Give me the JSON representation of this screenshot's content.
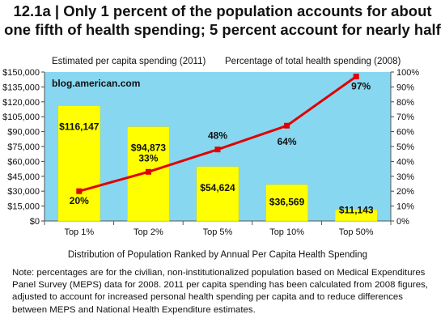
{
  "title_line1": "12.1a | Only 1 percent of the population accounts for about",
  "title_line2": "one fifth of health spending; 5 percent account for nearly half",
  "chart_data": {
    "type": "bar+line",
    "categories": [
      "Top 1%",
      "Top 2%",
      "Top 5%",
      "Top 10%",
      "Top 50%"
    ],
    "bar_series": {
      "name": "Estimated per capita spending (2011)",
      "values": [
        116147,
        94873,
        54624,
        36569,
        11143
      ],
      "labels": [
        "$116,147",
        "$94,873",
        "$54,624",
        "$36,569",
        "$11,143"
      ],
      "color": "#ffff00"
    },
    "line_series": {
      "name": "Percentage of total health spending (2008)",
      "values": [
        20,
        33,
        48,
        64,
        97
      ],
      "labels": [
        "20%",
        "33%",
        "48%",
        "64%",
        "97%"
      ],
      "color": "#e00000"
    },
    "y_left": {
      "min": 0,
      "max": 150000,
      "step": 15000,
      "tick_labels": [
        "$0",
        "$15,000",
        "$30,000",
        "$45,000",
        "$60,000",
        "$75,000",
        "$90,000",
        "$105,000",
        "$120,000",
        "$135,000",
        "$150,000"
      ]
    },
    "y_right": {
      "min": 0,
      "max": 100,
      "step": 10,
      "tick_labels": [
        "0%",
        "10%",
        "20%",
        "30%",
        "40%",
        "50%",
        "60%",
        "70%",
        "80%",
        "90%",
        "100%"
      ]
    },
    "xlabel": "Distribution of Population Ranked by Annual Per Capita Health Spending",
    "plot_background": "#87d7f0",
    "watermark": "blog.american.com"
  },
  "note": "Note: percentages are for the civilian, non-institutionalized population based on Medical Expenditures Panel Survey (MEPS) data for 2008.  2011 per capita spending has been calculated from 2008 figures, adjusted to account for increased personal health spending per capita and to reduce differences between MEPS and National Health Expenditure estimates."
}
